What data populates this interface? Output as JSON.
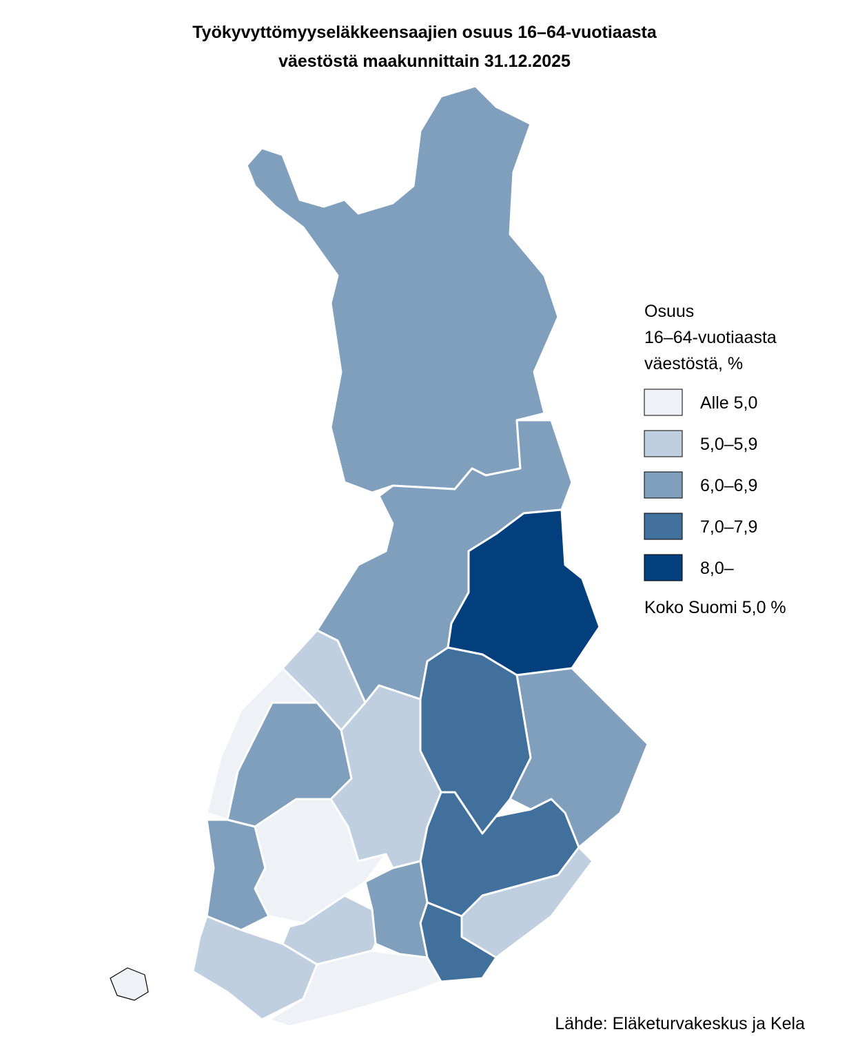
{
  "header": {
    "title": [
      "Työkyvyttömyyseläkkeensaajien osuus 16–64-vuotiaasta",
      "väestöstä maakunnittain 31.12.2025"
    ]
  },
  "legend": {
    "title": [
      "Osuus",
      "16–64-vuotiaasta",
      "väestöstä, %"
    ],
    "items": [
      {
        "label": "Alle 5,0",
        "color": "#eef2f6"
      },
      {
        "label": "5,0–5,9",
        "color": "#bfcfdf"
      },
      {
        "label": "6,0–6,9",
        "color": "#809fbd"
      },
      {
        "label": "7,0–7,9",
        "color": "#41709d"
      },
      {
        "label": "8,0–",
        "color": "#033f7d"
      }
    ]
  },
  "note": "Koko Suomi 5,0 %",
  "source": "Lähde: Eläketurvakeskus ja Kela"
}
